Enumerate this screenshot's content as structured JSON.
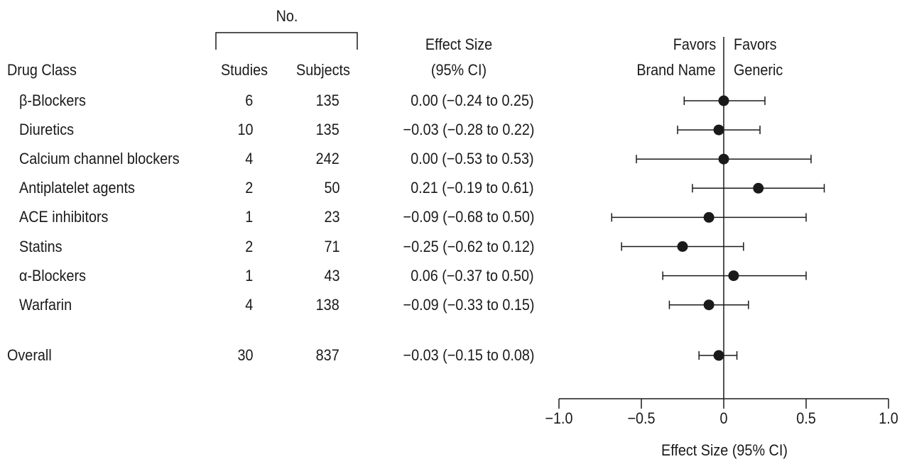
{
  "header": {
    "no_label": "No.",
    "drug_class": "Drug Class",
    "studies": "Studies",
    "subjects": "Subjects",
    "effect_line1": "Effect Size",
    "effect_line2": "(95% CI)",
    "favors_left_1": "Favors",
    "favors_left_2": "Brand Name",
    "favors_right_1": "Favors",
    "favors_right_2": "Generic"
  },
  "chart_data": {
    "type": "scatter",
    "subtype": "forest-plot",
    "xlabel": "Effect Size (95% CI)",
    "xlim": [
      -1.0,
      1.0
    ],
    "xticks": [
      -1.0,
      -0.5,
      0,
      0.5,
      1.0
    ],
    "xtick_labels": [
      "−1.0",
      "−0.5",
      "0",
      "0.5",
      "1.0"
    ],
    "reference_line": 0,
    "rows": [
      {
        "label": "β-Blockers",
        "studies": "6",
        "subjects": "135",
        "ci_text": "0.00 (−0.24 to 0.25)",
        "estimate": 0.0,
        "lower": -0.24,
        "upper": 0.25
      },
      {
        "label": "Diuretics",
        "studies": "10",
        "subjects": "135",
        "ci_text": "−0.03 (−0.28 to 0.22)",
        "estimate": -0.03,
        "lower": -0.28,
        "upper": 0.22
      },
      {
        "label": "Calcium channel blockers",
        "studies": "4",
        "subjects": "242",
        "ci_text": "0.00 (−0.53 to 0.53)",
        "estimate": 0.0,
        "lower": -0.53,
        "upper": 0.53
      },
      {
        "label": "Antiplatelet agents",
        "studies": "2",
        "subjects": "50",
        "ci_text": "0.21 (−0.19 to 0.61)",
        "estimate": 0.21,
        "lower": -0.19,
        "upper": 0.61
      },
      {
        "label": "ACE inhibitors",
        "studies": "1",
        "subjects": "23",
        "ci_text": "−0.09 (−0.68 to 0.50)",
        "estimate": -0.09,
        "lower": -0.68,
        "upper": 0.5
      },
      {
        "label": "Statins",
        "studies": "2",
        "subjects": "71",
        "ci_text": "−0.25 (−0.62 to 0.12)",
        "estimate": -0.25,
        "lower": -0.62,
        "upper": 0.12
      },
      {
        "label": "α-Blockers",
        "studies": "1",
        "subjects": "43",
        "ci_text": "0.06 (−0.37 to 0.50)",
        "estimate": 0.06,
        "lower": -0.37,
        "upper": 0.5
      },
      {
        "label": "Warfarin",
        "studies": "4",
        "subjects": "138",
        "ci_text": "−0.09 (−0.33 to 0.15)",
        "estimate": -0.09,
        "lower": -0.33,
        "upper": 0.15
      }
    ],
    "overall": {
      "label": "Overall",
      "studies": "30",
      "subjects": "837",
      "ci_text": "−0.03 (−0.15 to 0.08)",
      "estimate": -0.03,
      "lower": -0.15,
      "upper": 0.08
    }
  }
}
